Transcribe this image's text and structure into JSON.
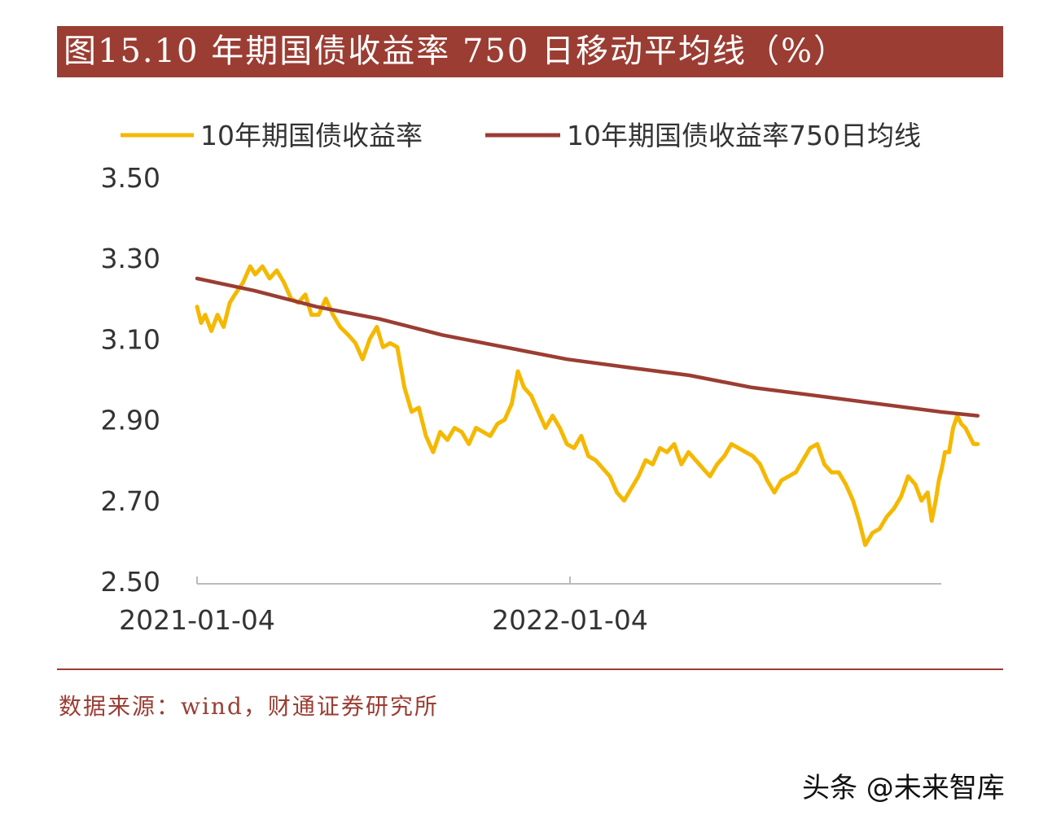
{
  "title": "图15.10 年期国债收益率 750 日移动平均线（%）",
  "source": "数据来源：wind，财通证券研究所",
  "watermark": "头条 @未来智库",
  "colors": {
    "title_bg": "#9b3d33",
    "yield": "#f5b800",
    "ma750": "#9b3d33",
    "axis": "#bbbbbb"
  },
  "chart_data": {
    "type": "line",
    "ylim": [
      2.5,
      3.5
    ],
    "yticks": [
      "3.50",
      "3.30",
      "3.10",
      "2.90",
      "2.70",
      "2.50"
    ],
    "xlim": [
      "2021-01-04",
      "2023-01-04"
    ],
    "xticks": [
      "2021-01-04",
      "2022-01-04"
    ],
    "grid": false,
    "legend_position": "top",
    "series": [
      {
        "name": "10年期国债收益率",
        "color": "#f5b800",
        "points": [
          [
            "2021-01-04",
            3.18
          ],
          [
            "2021-01-08",
            3.14
          ],
          [
            "2021-01-12",
            3.16
          ],
          [
            "2021-01-18",
            3.12
          ],
          [
            "2021-01-24",
            3.16
          ],
          [
            "2021-01-30",
            3.13
          ],
          [
            "2021-02-05",
            3.19
          ],
          [
            "2021-02-10",
            3.21
          ],
          [
            "2021-02-18",
            3.24
          ],
          [
            "2021-02-25",
            3.28
          ],
          [
            "2021-03-02",
            3.26
          ],
          [
            "2021-03-09",
            3.28
          ],
          [
            "2021-03-16",
            3.25
          ],
          [
            "2021-03-23",
            3.27
          ],
          [
            "2021-03-30",
            3.24
          ],
          [
            "2021-04-06",
            3.2
          ],
          [
            "2021-04-13",
            3.19
          ],
          [
            "2021-04-20",
            3.21
          ],
          [
            "2021-04-26",
            3.16
          ],
          [
            "2021-05-03",
            3.16
          ],
          [
            "2021-05-10",
            3.2
          ],
          [
            "2021-05-17",
            3.16
          ],
          [
            "2021-05-24",
            3.13
          ],
          [
            "2021-06-01",
            3.11
          ],
          [
            "2021-06-08",
            3.09
          ],
          [
            "2021-06-15",
            3.05
          ],
          [
            "2021-06-22",
            3.1
          ],
          [
            "2021-06-29",
            3.13
          ],
          [
            "2021-07-05",
            3.08
          ],
          [
            "2021-07-12",
            3.09
          ],
          [
            "2021-07-19",
            3.08
          ],
          [
            "2021-07-26",
            2.98
          ],
          [
            "2021-08-02",
            2.92
          ],
          [
            "2021-08-09",
            2.93
          ],
          [
            "2021-08-16",
            2.86
          ],
          [
            "2021-08-23",
            2.82
          ],
          [
            "2021-08-30",
            2.87
          ],
          [
            "2021-09-06",
            2.85
          ],
          [
            "2021-09-13",
            2.88
          ],
          [
            "2021-09-20",
            2.87
          ],
          [
            "2021-09-27",
            2.84
          ],
          [
            "2021-10-04",
            2.88
          ],
          [
            "2021-10-11",
            2.87
          ],
          [
            "2021-10-18",
            2.86
          ],
          [
            "2021-10-25",
            2.89
          ],
          [
            "2021-11-01",
            2.9
          ],
          [
            "2021-11-08",
            2.94
          ],
          [
            "2021-11-14",
            3.02
          ],
          [
            "2021-11-20",
            2.98
          ],
          [
            "2021-11-27",
            2.96
          ],
          [
            "2021-12-04",
            2.92
          ],
          [
            "2021-12-11",
            2.88
          ],
          [
            "2021-12-18",
            2.91
          ],
          [
            "2021-12-25",
            2.88
          ],
          [
            "2022-01-01",
            2.84
          ],
          [
            "2022-01-08",
            2.83
          ],
          [
            "2022-01-15",
            2.86
          ],
          [
            "2022-01-22",
            2.81
          ],
          [
            "2022-01-29",
            2.8
          ],
          [
            "2022-02-05",
            2.78
          ],
          [
            "2022-02-12",
            2.76
          ],
          [
            "2022-02-19",
            2.72
          ],
          [
            "2022-02-26",
            2.7
          ],
          [
            "2022-03-05",
            2.73
          ],
          [
            "2022-03-12",
            2.76
          ],
          [
            "2022-03-19",
            2.8
          ],
          [
            "2022-03-26",
            2.79
          ],
          [
            "2022-04-02",
            2.83
          ],
          [
            "2022-04-09",
            2.82
          ],
          [
            "2022-04-16",
            2.84
          ],
          [
            "2022-04-23",
            2.79
          ],
          [
            "2022-04-30",
            2.82
          ],
          [
            "2022-05-07",
            2.8
          ],
          [
            "2022-05-14",
            2.78
          ],
          [
            "2022-05-21",
            2.76
          ],
          [
            "2022-05-28",
            2.79
          ],
          [
            "2022-06-04",
            2.81
          ],
          [
            "2022-06-11",
            2.84
          ],
          [
            "2022-06-18",
            2.83
          ],
          [
            "2022-06-25",
            2.82
          ],
          [
            "2022-07-02",
            2.81
          ],
          [
            "2022-07-09",
            2.79
          ],
          [
            "2022-07-16",
            2.75
          ],
          [
            "2022-07-23",
            2.72
          ],
          [
            "2022-07-30",
            2.75
          ],
          [
            "2022-08-06",
            2.76
          ],
          [
            "2022-08-13",
            2.77
          ],
          [
            "2022-08-20",
            2.8
          ],
          [
            "2022-08-27",
            2.83
          ],
          [
            "2022-09-03",
            2.84
          ],
          [
            "2022-09-10",
            2.79
          ],
          [
            "2022-09-17",
            2.77
          ],
          [
            "2022-09-24",
            2.77
          ],
          [
            "2022-10-01",
            2.74
          ],
          [
            "2022-10-08",
            2.7
          ],
          [
            "2022-10-14",
            2.65
          ],
          [
            "2022-10-20",
            2.59
          ],
          [
            "2022-10-27",
            2.62
          ],
          [
            "2022-11-03",
            2.63
          ],
          [
            "2022-11-10",
            2.66
          ],
          [
            "2022-11-17",
            2.68
          ],
          [
            "2022-11-24",
            2.71
          ],
          [
            "2022-12-01",
            2.76
          ],
          [
            "2022-12-08",
            2.74
          ],
          [
            "2022-12-14",
            2.7
          ],
          [
            "2022-12-20",
            2.72
          ],
          [
            "2022-12-24",
            2.65
          ],
          [
            "2022-12-28",
            2.7
          ],
          [
            "2022-12-31",
            2.75
          ],
          [
            "2023-01-03",
            2.78
          ],
          [
            "2023-01-06",
            2.82
          ],
          [
            "2023-01-10",
            2.82
          ],
          [
            "2023-01-14",
            2.88
          ],
          [
            "2023-01-18",
            2.91
          ],
          [
            "2023-01-22",
            2.89
          ],
          [
            "2023-01-26",
            2.88
          ],
          [
            "2023-01-30",
            2.86
          ],
          [
            "2023-02-03",
            2.84
          ],
          [
            "2023-02-07",
            2.84
          ]
        ]
      },
      {
        "name": "10年期国债收益率750日均线",
        "color": "#9b3d33",
        "points": [
          [
            "2021-01-04",
            3.25
          ],
          [
            "2021-03-01",
            3.22
          ],
          [
            "2021-05-01",
            3.18
          ],
          [
            "2021-07-01",
            3.15
          ],
          [
            "2021-09-01",
            3.11
          ],
          [
            "2021-11-01",
            3.08
          ],
          [
            "2022-01-01",
            3.05
          ],
          [
            "2022-03-01",
            3.03
          ],
          [
            "2022-05-01",
            3.01
          ],
          [
            "2022-07-01",
            2.98
          ],
          [
            "2022-09-01",
            2.96
          ],
          [
            "2022-11-01",
            2.94
          ],
          [
            "2023-01-01",
            2.92
          ],
          [
            "2023-02-07",
            2.91
          ]
        ]
      }
    ]
  }
}
